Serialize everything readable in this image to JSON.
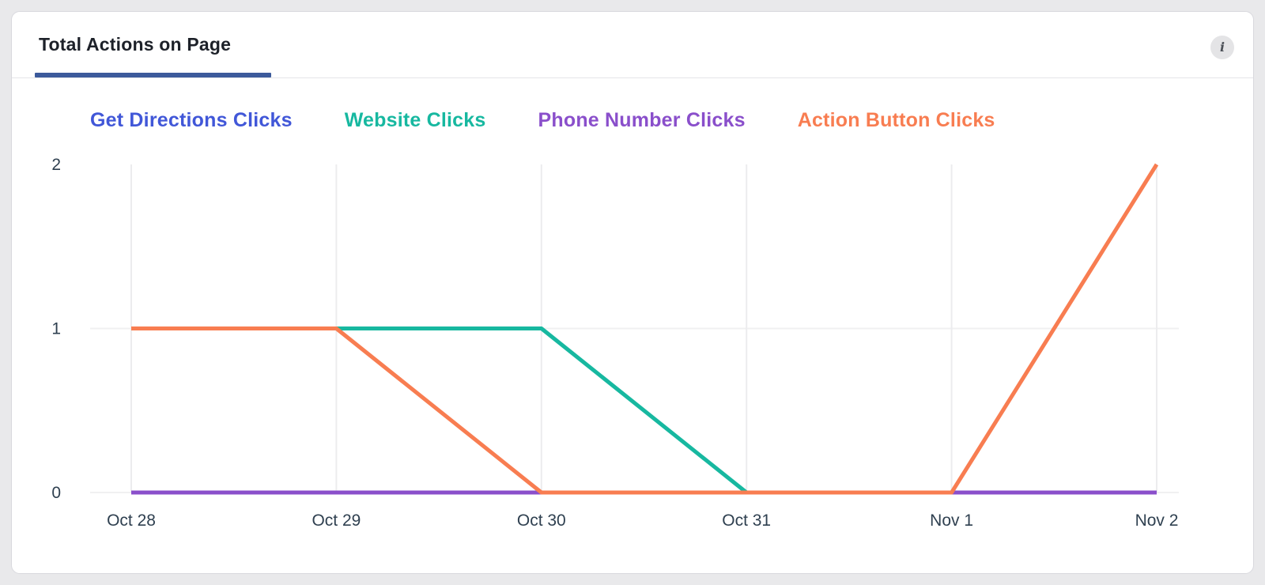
{
  "card": {
    "title": "Total Actions on Page",
    "info_glyph": "i",
    "active_tab_color": "#3c5a9b"
  },
  "chart_data": {
    "type": "line",
    "title": "Total Actions on Page",
    "x": [
      "Oct 28",
      "Oct 29",
      "Oct 30",
      "Oct 31",
      "Nov 1",
      "Nov 2"
    ],
    "series": [
      {
        "name": "Get Directions Clicks",
        "color": "#4157d8",
        "values": [
          0,
          0,
          0,
          0,
          0,
          0
        ]
      },
      {
        "name": "Website Clicks",
        "color": "#17b8a0",
        "values": [
          1,
          1,
          1,
          0,
          0,
          0
        ]
      },
      {
        "name": "Phone Number Clicks",
        "color": "#8a4fcb",
        "values": [
          0,
          0,
          0,
          0,
          0,
          0
        ]
      },
      {
        "name": "Action Button Clicks",
        "color": "#f87d51",
        "values": [
          1,
          1,
          0,
          0,
          0,
          2
        ]
      }
    ],
    "y_ticks": [
      0,
      1,
      2
    ],
    "ylim": [
      0,
      2
    ],
    "xlabel": "",
    "ylabel": "",
    "grid": true,
    "legend_position": "top"
  }
}
